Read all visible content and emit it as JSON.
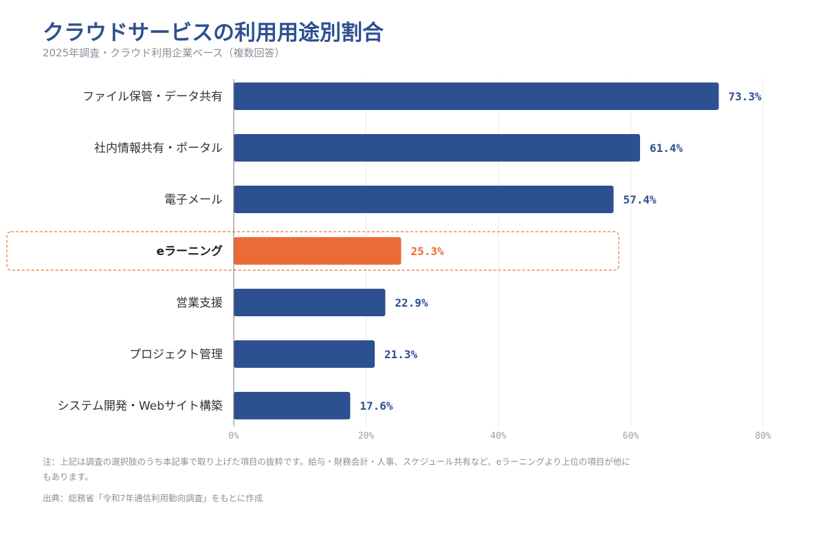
{
  "title": "クラウドサービスの利用用途別割合",
  "subtitle": "2025年調査・クラウド利用企業ベース（複数回答）",
  "note": "注：上記は調査の選択肢のうち本記事で取り上げた項目の抜粋です。給与・財務会計・人事、スケジュール共有など、eラーニングより上位の項目が他にもあります。",
  "source": "出典：総務省「令和7年通信利用動向調査」をもとに作成",
  "colors": {
    "bar": "#2d5090",
    "highlight": "#ec6a35",
    "label_text": "#333333",
    "highlight_label_text": "#222222",
    "axis_text": "#9aa0a6",
    "grid": "#e8e8e8"
  },
  "chart_data": {
    "type": "bar",
    "orientation": "horizontal",
    "categories": [
      "ファイル保管・データ共有",
      "社内情報共有・ポータル",
      "電子メール",
      "eラーニング",
      "営業支援",
      "プロジェクト管理",
      "システム開発・Webサイト構築"
    ],
    "values": [
      73.3,
      61.4,
      57.4,
      25.3,
      22.9,
      21.3,
      17.6
    ],
    "value_labels": [
      "73.3%",
      "61.4%",
      "57.4%",
      "25.3%",
      "22.9%",
      "21.3%",
      "17.6%"
    ],
    "highlight_category": "eラーニング",
    "xlim": [
      0,
      80
    ],
    "x_ticks": [
      0,
      20,
      40,
      60,
      80
    ],
    "x_tick_labels": [
      "0%",
      "20%",
      "40%",
      "60%",
      "80%"
    ],
    "grid": true,
    "legend": false
  }
}
